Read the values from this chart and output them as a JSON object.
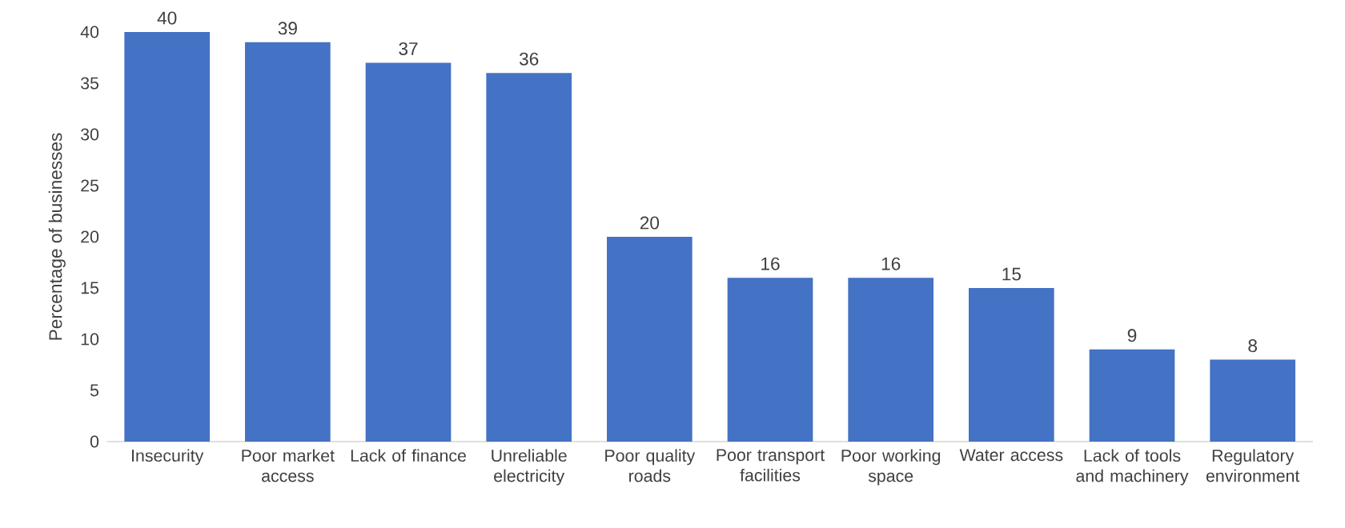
{
  "chart_data": {
    "type": "bar",
    "ylabel": "Percentage of businesses",
    "categories": [
      "Insecurity",
      "Poor market access",
      "Lack of finance",
      "Unreliable electricity",
      "Poor quality roads",
      "Poor transport facilities",
      "Poor working space",
      "Water access",
      "Lack of tools and machinery",
      "Regulatory environment"
    ],
    "values": [
      40,
      39,
      37,
      36,
      20,
      16,
      16,
      15,
      9,
      8
    ],
    "color": "#4472c4",
    "ylim": [
      0,
      40
    ],
    "yticks": [
      0,
      5,
      10,
      15,
      20,
      25,
      30,
      35,
      40
    ],
    "data_labels": true
  }
}
